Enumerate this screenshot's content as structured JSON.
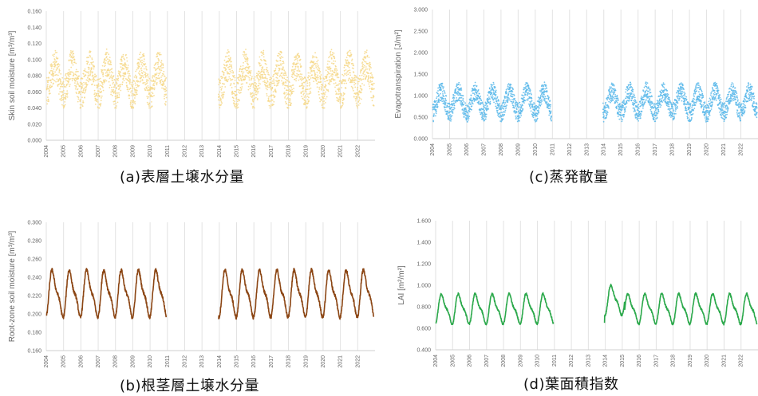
{
  "chart_data": [
    {
      "id": "a",
      "type": "scatter",
      "caption": "(a)表層土壌水分量",
      "ylabel": "Skin soil moisture [m³/m³]",
      "ylim": [
        0.0,
        0.16
      ],
      "yticks": [
        "0.000",
        "0.020",
        "0.040",
        "0.060",
        "0.080",
        "0.100",
        "0.120",
        "0.140",
        "0.160"
      ],
      "xlim": [
        2004,
        2023
      ],
      "xticks": [
        "2004",
        "2005",
        "2006",
        "2007",
        "2008",
        "2009",
        "2010",
        "2011",
        "2012",
        "2013",
        "2014",
        "2015",
        "2016",
        "2017",
        "2018",
        "2019",
        "2020",
        "2021",
        "2022"
      ],
      "color": "#f6d88a",
      "grid": "vertical",
      "data_gap": [
        2010.95,
        2013.95
      ],
      "seasonal_pattern": {
        "mean": 0.075,
        "amplitude": 0.018,
        "noise": 0.02,
        "min": 0.04,
        "max": 0.115,
        "trend": 0.0
      }
    },
    {
      "id": "b",
      "type": "line",
      "caption": "(b)根茎層土壌水分量",
      "ylabel": "Root-zone soil moisture [m³/m³]",
      "ylim": [
        0.16,
        0.3
      ],
      "yticks": [
        "0.160",
        "0.180",
        "0.200",
        "0.220",
        "0.240",
        "0.260",
        "0.280",
        "0.300"
      ],
      "xlim": [
        2004,
        2023
      ],
      "xticks": [
        "2004",
        "2005",
        "2006",
        "2007",
        "2008",
        "2009",
        "2010",
        "2011",
        "2012",
        "2013",
        "2014",
        "2015",
        "2016",
        "2017",
        "2018",
        "2019",
        "2020",
        "2021",
        "2022"
      ],
      "color": "#8b4513",
      "grid": "vertical",
      "data_gap": [
        2010.95,
        2013.95
      ],
      "seasonal_pattern": {
        "mean": 0.222,
        "amplitude": 0.022,
        "noise": 0.002,
        "min": 0.19,
        "max": 0.252,
        "trend": 0.0
      }
    },
    {
      "id": "c",
      "type": "scatter",
      "caption": "(c)蒸発散量",
      "ylabel": "Evapotranspiration [J/m²]",
      "ylim": [
        0.0,
        3.0
      ],
      "yticks": [
        "0.000",
        "0.500",
        "1.000",
        "1.500",
        "2.000",
        "2.500",
        "3.000"
      ],
      "xlim": [
        2004,
        2023
      ],
      "xticks": [
        "2004",
        "2005",
        "2006",
        "2007",
        "2008",
        "2009",
        "2010",
        "2011",
        "2012",
        "2013",
        "2014",
        "2015",
        "2016",
        "2017",
        "2018",
        "2019",
        "2020",
        "2021",
        "2022"
      ],
      "color": "#5ab8ea",
      "grid": "vertical",
      "data_gap": [
        2010.95,
        2013.95
      ],
      "seasonal_pattern": {
        "mean": 0.85,
        "amplitude": 0.25,
        "noise": 0.22,
        "min": 0.25,
        "max": 1.7,
        "trend": 0.0
      }
    },
    {
      "id": "d",
      "type": "line",
      "caption": "(d)葉面積指数",
      "ylabel": "LAI [m²/m²]",
      "ylim": [
        0.4,
        1.6
      ],
      "yticks": [
        "0.400",
        "0.600",
        "0.800",
        "1.000",
        "1.200",
        "1.400",
        "1.600"
      ],
      "xlim": [
        2004,
        2023
      ],
      "xticks": [
        "2004",
        "2005",
        "2006",
        "2007",
        "2008",
        "2009",
        "2010",
        "2011",
        "2012",
        "2013",
        "2014",
        "2015",
        "2016",
        "2017",
        "2018",
        "2019",
        "2020",
        "2021",
        "2022"
      ],
      "color": "#2aa84a",
      "grid": "vertical",
      "data_gap": [
        2010.95,
        2013.95
      ],
      "seasonal_pattern": {
        "mean": 0.78,
        "amplitude": 0.12,
        "noise": 0.01,
        "min": 0.58,
        "max": 1.1,
        "trend": 0.0
      }
    }
  ]
}
